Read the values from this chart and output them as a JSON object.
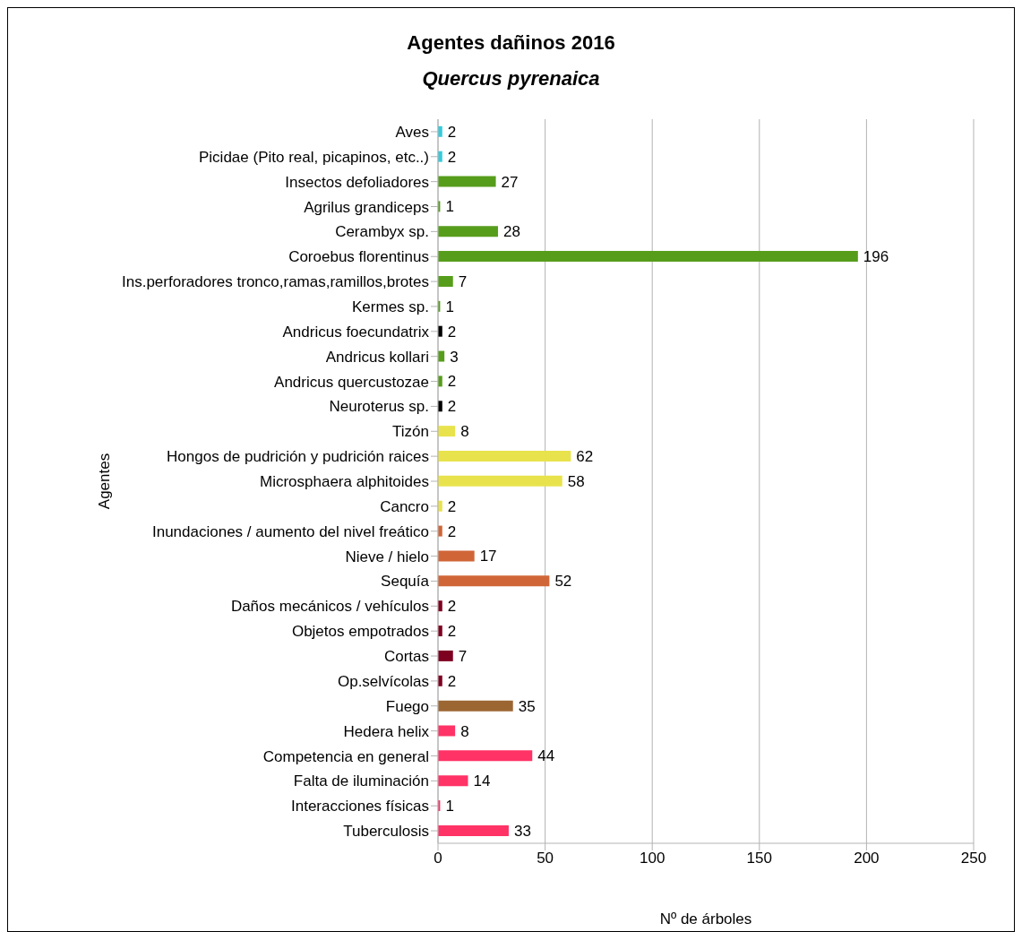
{
  "chart_data": {
    "type": "bar",
    "orientation": "horizontal",
    "title": "Agentes dañinos 2016",
    "subtitle": "Quercus pyrenaica",
    "xlabel": "Nº de árboles",
    "ylabel": "Agentes",
    "categories": [
      "Aves",
      "Picidae (Pito real, picapinos, etc..)",
      "Insectos defoliadores",
      "Agrilus grandiceps",
      "Cerambyx sp.",
      "Coroebus florentinus",
      "Ins.perforadores tronco,ramas,ramillos,brotes",
      "Kermes sp.",
      "Andricus foecundatrix",
      "Andricus kollari",
      "Andricus quercustozae",
      "Neuroterus sp.",
      "Tizón",
      "Hongos de pudrición y pudrición raices",
      "Microsphaera alphitoides",
      "Cancro",
      "Inundaciones / aumento del nivel freático",
      "Nieve / hielo",
      "Sequía",
      "Daños mecánicos / vehículos",
      "Objetos empotrados",
      "Cortas",
      "Op.selvícolas",
      "Fuego",
      "Hedera helix",
      "Competencia en general",
      "Falta de iluminación",
      "Interacciones físicas",
      "Tuberculosis"
    ],
    "values": [
      2,
      2,
      27,
      1,
      28,
      196,
      7,
      1,
      2,
      3,
      2,
      2,
      8,
      62,
      58,
      2,
      2,
      17,
      52,
      2,
      2,
      7,
      2,
      35,
      8,
      44,
      14,
      1,
      33
    ],
    "colors": [
      "#33ccdd",
      "#33ccdd",
      "#579d1c",
      "#579d1c",
      "#579d1c",
      "#579d1c",
      "#579d1c",
      "#579d1c",
      "#000000",
      "#579d1c",
      "#579d1c",
      "#000000",
      "#e8e34c",
      "#e8e34c",
      "#e8e34c",
      "#e8e34c",
      "#d06638",
      "#d06638",
      "#d06638",
      "#7e0021",
      "#7e0021",
      "#7e0021",
      "#7e0021",
      "#9c6633",
      "#ff3366",
      "#ff3366",
      "#ff3366",
      "#ff3366",
      "#ff3366"
    ],
    "xlim": [
      0,
      250
    ],
    "xticks": [
      0,
      50,
      100,
      150,
      200,
      250
    ],
    "grid": "x",
    "data_labels": true
  }
}
